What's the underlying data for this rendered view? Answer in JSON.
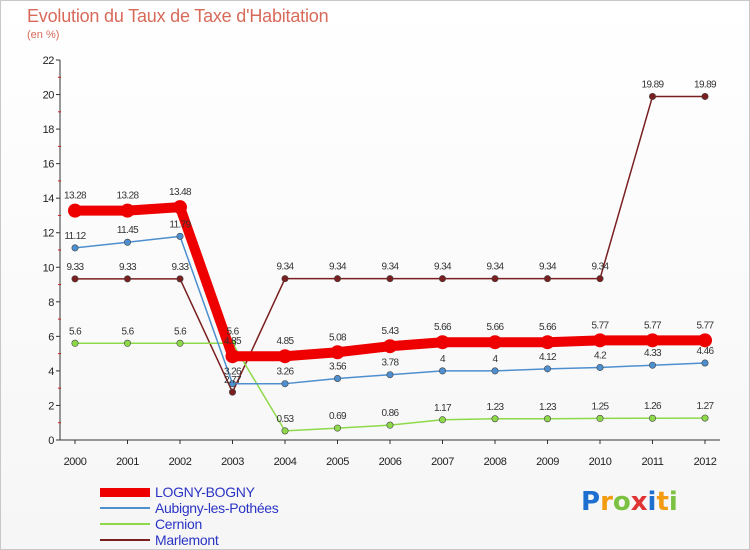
{
  "title": "Evolution du Taux de Taxe d'Habitation",
  "unit": "(en %)",
  "chart_data": {
    "type": "line",
    "title": "Evolution du Taux de Taxe d'Habitation",
    "ylabel": "(en %)",
    "xlabel": "",
    "ylim": [
      0,
      22
    ],
    "yticks": [
      0,
      2,
      4,
      6,
      8,
      10,
      12,
      14,
      16,
      18,
      20,
      22
    ],
    "categories": [
      "2000",
      "2001",
      "2002",
      "2003",
      "2004",
      "2005",
      "2006",
      "2007",
      "2008",
      "2009",
      "2010",
      "2011",
      "2012"
    ],
    "grid": false,
    "legend_position": "bottom-left",
    "series": [
      {
        "name": "Marlemont",
        "color": "#7a1f1f",
        "values": [
          9.33,
          9.33,
          9.33,
          2.77,
          9.34,
          9.34,
          9.34,
          9.34,
          9.34,
          9.34,
          9.34,
          19.89,
          19.89
        ],
        "labels": [
          "9.33",
          "9.33",
          "9.33",
          "2.77",
          "9.34",
          "9.34",
          "9.34",
          "9.34",
          "9.34",
          "9.34",
          "9.34",
          "19.89",
          "19.89"
        ]
      },
      {
        "name": "Cernion",
        "color": "#8ed94a",
        "values": [
          5.6,
          5.6,
          5.6,
          5.6,
          0.53,
          0.69,
          0.86,
          1.17,
          1.23,
          1.23,
          1.25,
          1.26,
          1.27
        ],
        "labels": [
          "5.6",
          "5.6",
          "5.6",
          "5.6",
          "0.53",
          "0.69",
          "0.86",
          "1.17",
          "1.23",
          "1.23",
          "1.25",
          "1.26",
          "1.27"
        ]
      },
      {
        "name": "Aubigny-les-Pothées",
        "color": "#4d8fcf",
        "values": [
          11.12,
          11.45,
          11.79,
          3.26,
          3.26,
          3.56,
          3.78,
          4,
          4,
          4.12,
          4.2,
          4.33,
          4.46
        ],
        "labels": [
          "11.12",
          "11.45",
          "11.79",
          "3.26",
          "3.26",
          "3.56",
          "3.78",
          "4",
          "4",
          "4.12",
          "4.2",
          "4.33",
          "4.46"
        ]
      },
      {
        "name": "LOGNY-BOGNY",
        "color": "#ee0000",
        "values": [
          13.28,
          13.28,
          13.48,
          4.85,
          4.85,
          5.08,
          5.43,
          5.66,
          5.66,
          5.66,
          5.77,
          5.77,
          5.77
        ],
        "labels": [
          "13.28",
          "13.28",
          "13.48",
          "4.85",
          "4.85",
          "5.08",
          "5.43",
          "5.66",
          "5.66",
          "5.66",
          "5.77",
          "5.77",
          "5.77"
        ]
      }
    ]
  },
  "legend": [
    {
      "label": "LOGNY-BOGNY",
      "color": "#ee0000"
    },
    {
      "label": "Aubigny-les-Pothées",
      "color": "#4d8fcf"
    },
    {
      "label": "Cernion",
      "color": "#8ed94a"
    },
    {
      "label": "Marlemont",
      "color": "#7a1f1f"
    }
  ],
  "logo": {
    "letters": [
      "P",
      "r",
      "o",
      "x",
      "i",
      "t",
      "i"
    ],
    "colors": [
      "#1e6fd0",
      "#f39c12",
      "#7cc242",
      "#e03434",
      "#1e6fd0",
      "#f39c12",
      "#7cc242"
    ]
  }
}
